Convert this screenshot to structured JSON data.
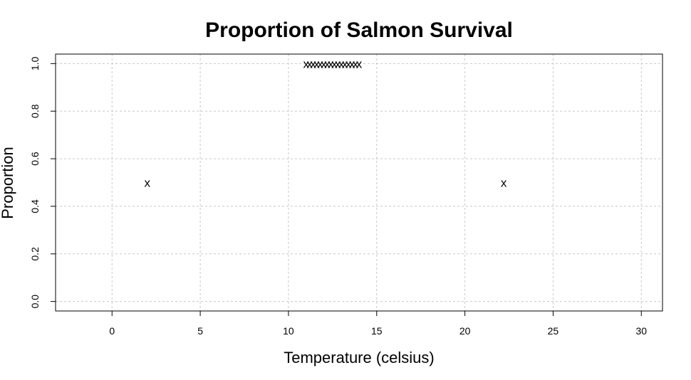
{
  "chart_data": {
    "type": "scatter",
    "title": "Proportion of Salmon Survival",
    "xlabel": "Temperature (celsius)",
    "ylabel": "Proportion",
    "xlim": [
      -3.2,
      31.2
    ],
    "ylim": [
      -0.04,
      1.04
    ],
    "xticks": [
      0,
      5,
      10,
      15,
      20,
      25,
      30
    ],
    "yticks": [
      0.0,
      0.2,
      0.4,
      0.6,
      0.8,
      1.0
    ],
    "xtick_labels": [
      "0",
      "5",
      "10",
      "15",
      "20",
      "25",
      "30"
    ],
    "ytick_labels": [
      "0.0",
      "0.2",
      "0.4",
      "0.6",
      "0.8",
      "1.0"
    ],
    "grid": true,
    "marker": "x",
    "points": [
      {
        "x": 2.0,
        "y": 0.5
      },
      {
        "x": 11.0,
        "y": 1.0
      },
      {
        "x": 11.2,
        "y": 1.0
      },
      {
        "x": 11.4,
        "y": 1.0
      },
      {
        "x": 11.6,
        "y": 1.0
      },
      {
        "x": 11.8,
        "y": 1.0
      },
      {
        "x": 12.0,
        "y": 1.0
      },
      {
        "x": 12.2,
        "y": 1.0
      },
      {
        "x": 12.4,
        "y": 1.0
      },
      {
        "x": 12.6,
        "y": 1.0
      },
      {
        "x": 12.8,
        "y": 1.0
      },
      {
        "x": 13.0,
        "y": 1.0
      },
      {
        "x": 13.2,
        "y": 1.0
      },
      {
        "x": 13.4,
        "y": 1.0
      },
      {
        "x": 13.6,
        "y": 1.0
      },
      {
        "x": 13.8,
        "y": 1.0
      },
      {
        "x": 14.0,
        "y": 1.0
      },
      {
        "x": 22.2,
        "y": 0.5
      }
    ]
  }
}
